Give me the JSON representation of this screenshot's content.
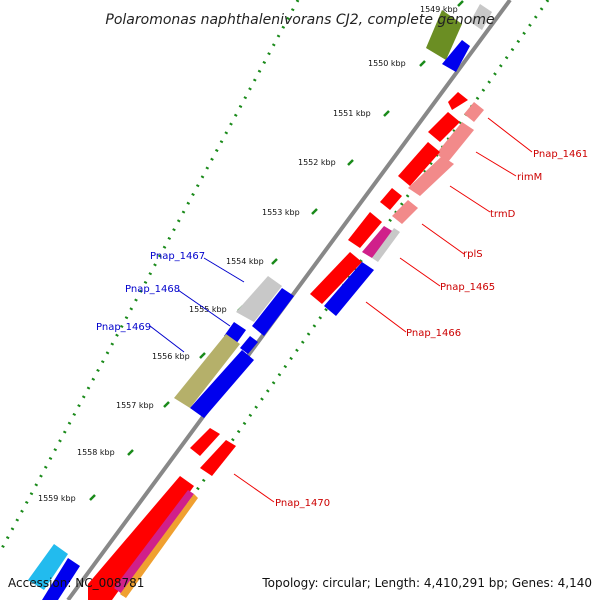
{
  "title": "Polaromonas naphthalenivorans CJ2, complete genome",
  "footer": {
    "accession": "Accession: NC_008781",
    "summary": "Topology: circular; Length: 4,410,291 bp; Genes: 4,140"
  },
  "ticks": [
    {
      "label": "1549 kbp"
    },
    {
      "label": "1550 kbp"
    },
    {
      "label": "1551 kbp"
    },
    {
      "label": "1552 kbp"
    },
    {
      "label": "1553 kbp"
    },
    {
      "label": "1554 kbp"
    },
    {
      "label": "1555 kbp"
    },
    {
      "label": "1556 kbp"
    },
    {
      "label": "1557 kbp"
    },
    {
      "label": "1558 kbp"
    },
    {
      "label": "1559 kbp"
    }
  ],
  "gene_labels": [
    {
      "name": "Pnap_1461",
      "color": "#cc0000"
    },
    {
      "name": "rimM",
      "color": "#cc0000"
    },
    {
      "name": "trmD",
      "color": "#cc0000"
    },
    {
      "name": "rplS",
      "color": "#cc0000"
    },
    {
      "name": "Pnap_1465",
      "color": "#cc0000"
    },
    {
      "name": "Pnap_1466",
      "color": "#cc0000"
    },
    {
      "name": "Pnap_1467",
      "color": "#0000cc"
    },
    {
      "name": "Pnap_1468",
      "color": "#0000cc"
    },
    {
      "name": "Pnap_1469",
      "color": "#0000cc"
    },
    {
      "name": "Pnap_1470",
      "color": "#cc0000"
    }
  ],
  "colors": {
    "backbone": "#888888",
    "gc_dots": "#1a8a1a",
    "cds_reverse": "#ff0000",
    "cds_forward": "#0000ee",
    "rna_like": "#f28a8a",
    "hypothetical": "#c8c8c8",
    "olive": "#b5b06a",
    "dark_olive": "#6b8e23",
    "magenta": "#d0208a",
    "orange": "#f0a030",
    "cyan": "#22bbee",
    "label_line_red": "#ee0000",
    "label_line_blue": "#0000cc"
  }
}
